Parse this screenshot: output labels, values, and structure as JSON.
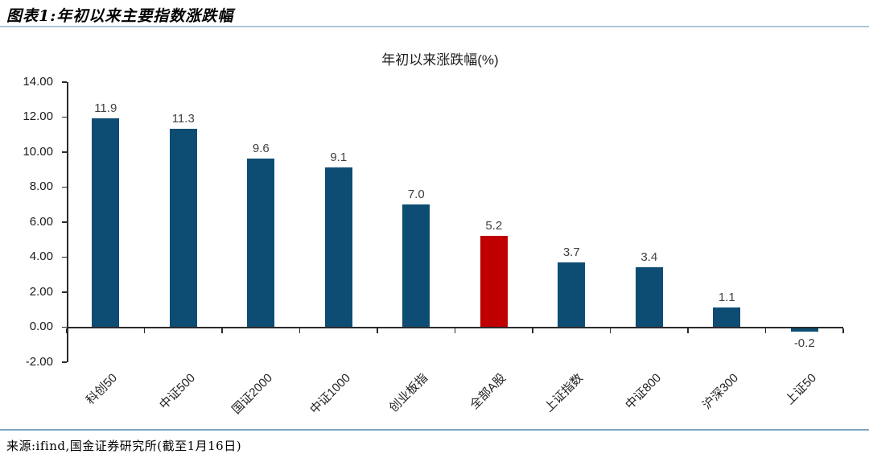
{
  "header": {
    "title": "图表1:年初以来主要指数涨跌幅"
  },
  "footer": {
    "source": "来源:ifind,国金证券研究所(截至1月16日)"
  },
  "chart_data": {
    "type": "bar",
    "title": "年初以来涨跌幅(%)",
    "categories": [
      "科创50",
      "中证500",
      "国证2000",
      "中证1000",
      "创业板指",
      "全部A股",
      "上证指数",
      "中证800",
      "沪深300",
      "上证50"
    ],
    "values": [
      11.9,
      11.3,
      9.6,
      9.1,
      7.0,
      5.2,
      3.7,
      3.4,
      1.1,
      -0.2
    ],
    "highlight_index": 5,
    "highlight_category": "全部A股",
    "bar_color": "#0e4d73",
    "highlight_color": "#c00000",
    "value_label_color": "#404040",
    "axis_color": "#2b2b2b",
    "ylim": [
      -2,
      14
    ],
    "ytick_step": 2,
    "ytick_labels": [
      "14.00",
      "12.00",
      "10.00",
      "8.00",
      "6.00",
      "4.00",
      "2.00",
      "0.00",
      "-2.00"
    ],
    "grid": false,
    "legend_position": "none"
  }
}
